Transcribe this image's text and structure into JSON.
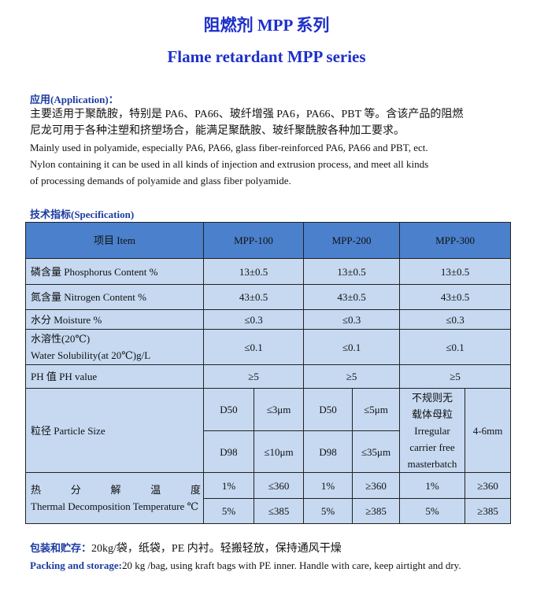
{
  "title_cn": "阻燃剂 MPP 系列",
  "title_en": "Flame retardant MPP series",
  "application": {
    "heading": "应用(Application)：",
    "text_cn": [
      "主要适用于聚酰胺，特别是 PA6、PA66、玻纤增强 PA6，PA66、PBT 等。含该产品的阻燃",
      "尼龙可用于各种注塑和挤塑场合，能满足聚酰胺、玻纤聚酰胺各种加工要求。"
    ],
    "text_en": [
      "Mainly used in polyamide, especially PA6, PA66, glass fiber-reinforced PA6, PA66 and PBT, ect.",
      "Nylon containing it can be used in all kinds of injection and extrusion process, and meet all kinds",
      "of processing demands of polyamide and glass fiber polyamide."
    ]
  },
  "specification": {
    "heading": "技术指标(Specification)",
    "table": {
      "header": [
        "项目 Item",
        "MPP-100",
        "MPP-200",
        "MPP-300"
      ],
      "rows": [
        {
          "label": [
            "磷含量 Phosphorus Content %"
          ],
          "values": [
            "13±0.5",
            "13±0.5",
            "13±0.5"
          ]
        },
        {
          "label": [
            "氮含量 Nitrogen Content %"
          ],
          "values": [
            "43±0.5",
            "43±0.5",
            "43±0.5"
          ]
        },
        {
          "label": [
            "水分 Moisture %"
          ],
          "values": [
            "≤0.3",
            "≤0.3",
            "≤0.3"
          ]
        },
        {
          "label": [
            "水溶性(20℃)",
            "Water Solubility(at 20℃)g/L"
          ],
          "values": [
            "≤0.1",
            "≤0.1",
            "≤0.1"
          ]
        },
        {
          "label": [
            "PH 值 PH value"
          ],
          "values": [
            "≥5",
            "≥5",
            "≥5"
          ]
        },
        {
          "label": [
            "粒径 Particle Size"
          ],
          "sub_rows": [
            [
              "D50",
              "≤3μm",
              "D50",
              "≤5μm"
            ],
            [
              "D98",
              "≤10μm",
              "D98",
              "≤35μm"
            ]
          ],
          "mpp300": [
            "不规则无",
            "载体母粒",
            "Irregular",
            "carrier free",
            "masterbatch"
          ],
          "mpp300_size": "4-6mm"
        },
        {
          "label": [
            "热 分 解 温 度",
            "Thermal Decomposition Temperature ℃"
          ],
          "sub_rows": [
            [
              "1%",
              "≤360",
              "1%",
              "≥360",
              "1%",
              "≥360"
            ],
            [
              "5%",
              "≤385",
              "5%",
              "≥385",
              "5%",
              "≥385"
            ]
          ]
        }
      ]
    }
  },
  "packing": {
    "heading_cn": "包装和贮存：",
    "text_cn": "20kg/袋，纸袋，PE 内衬。轻搬轻放，保持通风干燥",
    "heading_en": "Packing and storage:",
    "text_en": "20 kg /bag, using kraft bags with PE inner. Handle with care, keep airtight and dry."
  }
}
